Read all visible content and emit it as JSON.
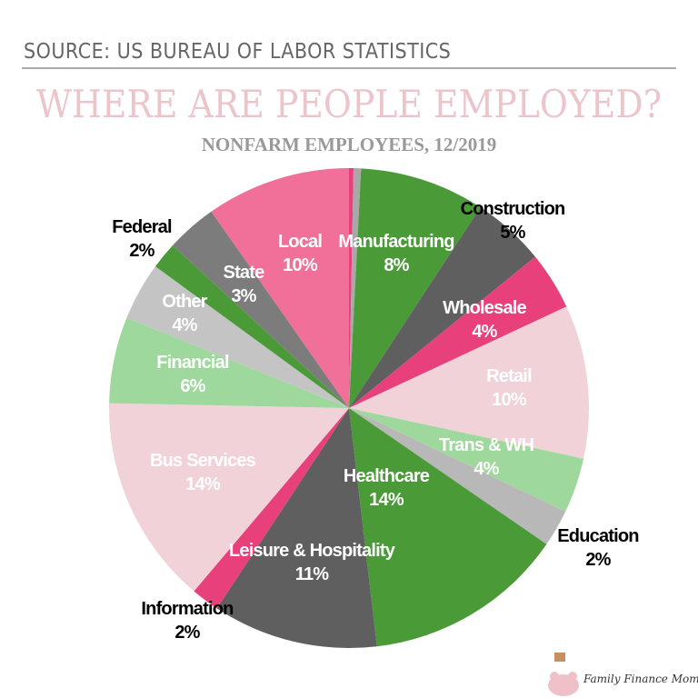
{
  "header": {
    "source": "SOURCE: US BUREAU OF LABOR STATISTICS"
  },
  "chart_data": {
    "type": "pie",
    "title": "WHERE ARE PEOPLE EMPLOYED?",
    "subtitle": "NONFARM EMPLOYEES, 12/2019",
    "start": "12 o'clock, clockwise",
    "slices": [
      {
        "label": "",
        "pct_label": "",
        "value": 0.3,
        "color": "#e8407a"
      },
      {
        "label": "",
        "pct_label": "",
        "value": 0.5,
        "color": "#a8a8a8"
      },
      {
        "label": "Manufacturing",
        "pct_label": "8%",
        "value": 8.4,
        "color": "#4a9a38",
        "text_color": "#ffffff"
      },
      {
        "label": "Construction",
        "pct_label": "5%",
        "value": 4.9,
        "color": "#5f5f5f",
        "text_color": "#000000"
      },
      {
        "label": "Wholesale",
        "pct_label": "4%",
        "value": 3.9,
        "color": "#e8407a",
        "text_color": "#ffffff"
      },
      {
        "label": "Retail",
        "pct_label": "10%",
        "value": 10.3,
        "color": "#f0d2d8",
        "text_color": "#ffffff"
      },
      {
        "label": "Trans & WH",
        "pct_label": "4%",
        "value": 3.7,
        "color": "#9fd89c",
        "text_color": "#ffffff"
      },
      {
        "label": "Education",
        "pct_label": "2%",
        "value": 2.5,
        "color": "#b8b8b8",
        "text_color": "#000000"
      },
      {
        "label": "Healthcare",
        "pct_label": "14%",
        "value": 13.5,
        "color": "#4a9a38",
        "text_color": "#ffffff"
      },
      {
        "label": "Leisure & Hospitality",
        "pct_label": "11%",
        "value": 11.1,
        "color": "#5f5f5f",
        "text_color": "#ffffff"
      },
      {
        "label": "Information",
        "pct_label": "2%",
        "value": 1.9,
        "color": "#e8407a",
        "text_color": "#000000"
      },
      {
        "label": "Bus Services",
        "pct_label": "14%",
        "value": 14.1,
        "color": "#f0d2d8",
        "text_color": "#ffffff"
      },
      {
        "label": "Financial",
        "pct_label": "6%",
        "value": 5.8,
        "color": "#9fd89c",
        "text_color": "#ffffff"
      },
      {
        "label": "Other",
        "pct_label": "4%",
        "value": 3.9,
        "color": "#c4c4c4",
        "text_color": "#ffffff"
      },
      {
        "label": "Federal",
        "pct_label": "2%",
        "value": 1.8,
        "color": "#4a9a38",
        "text_color": "#000000"
      },
      {
        "label": "State",
        "pct_label": "3%",
        "value": 3.4,
        "color": "#7c7c7c",
        "text_color": "#ffffff"
      },
      {
        "label": "Local",
        "pct_label": "10%",
        "value": 9.7,
        "color": "#f0709a",
        "text_color": "#ffffff"
      }
    ]
  },
  "logo": {
    "text": "Family Finance Mom"
  }
}
